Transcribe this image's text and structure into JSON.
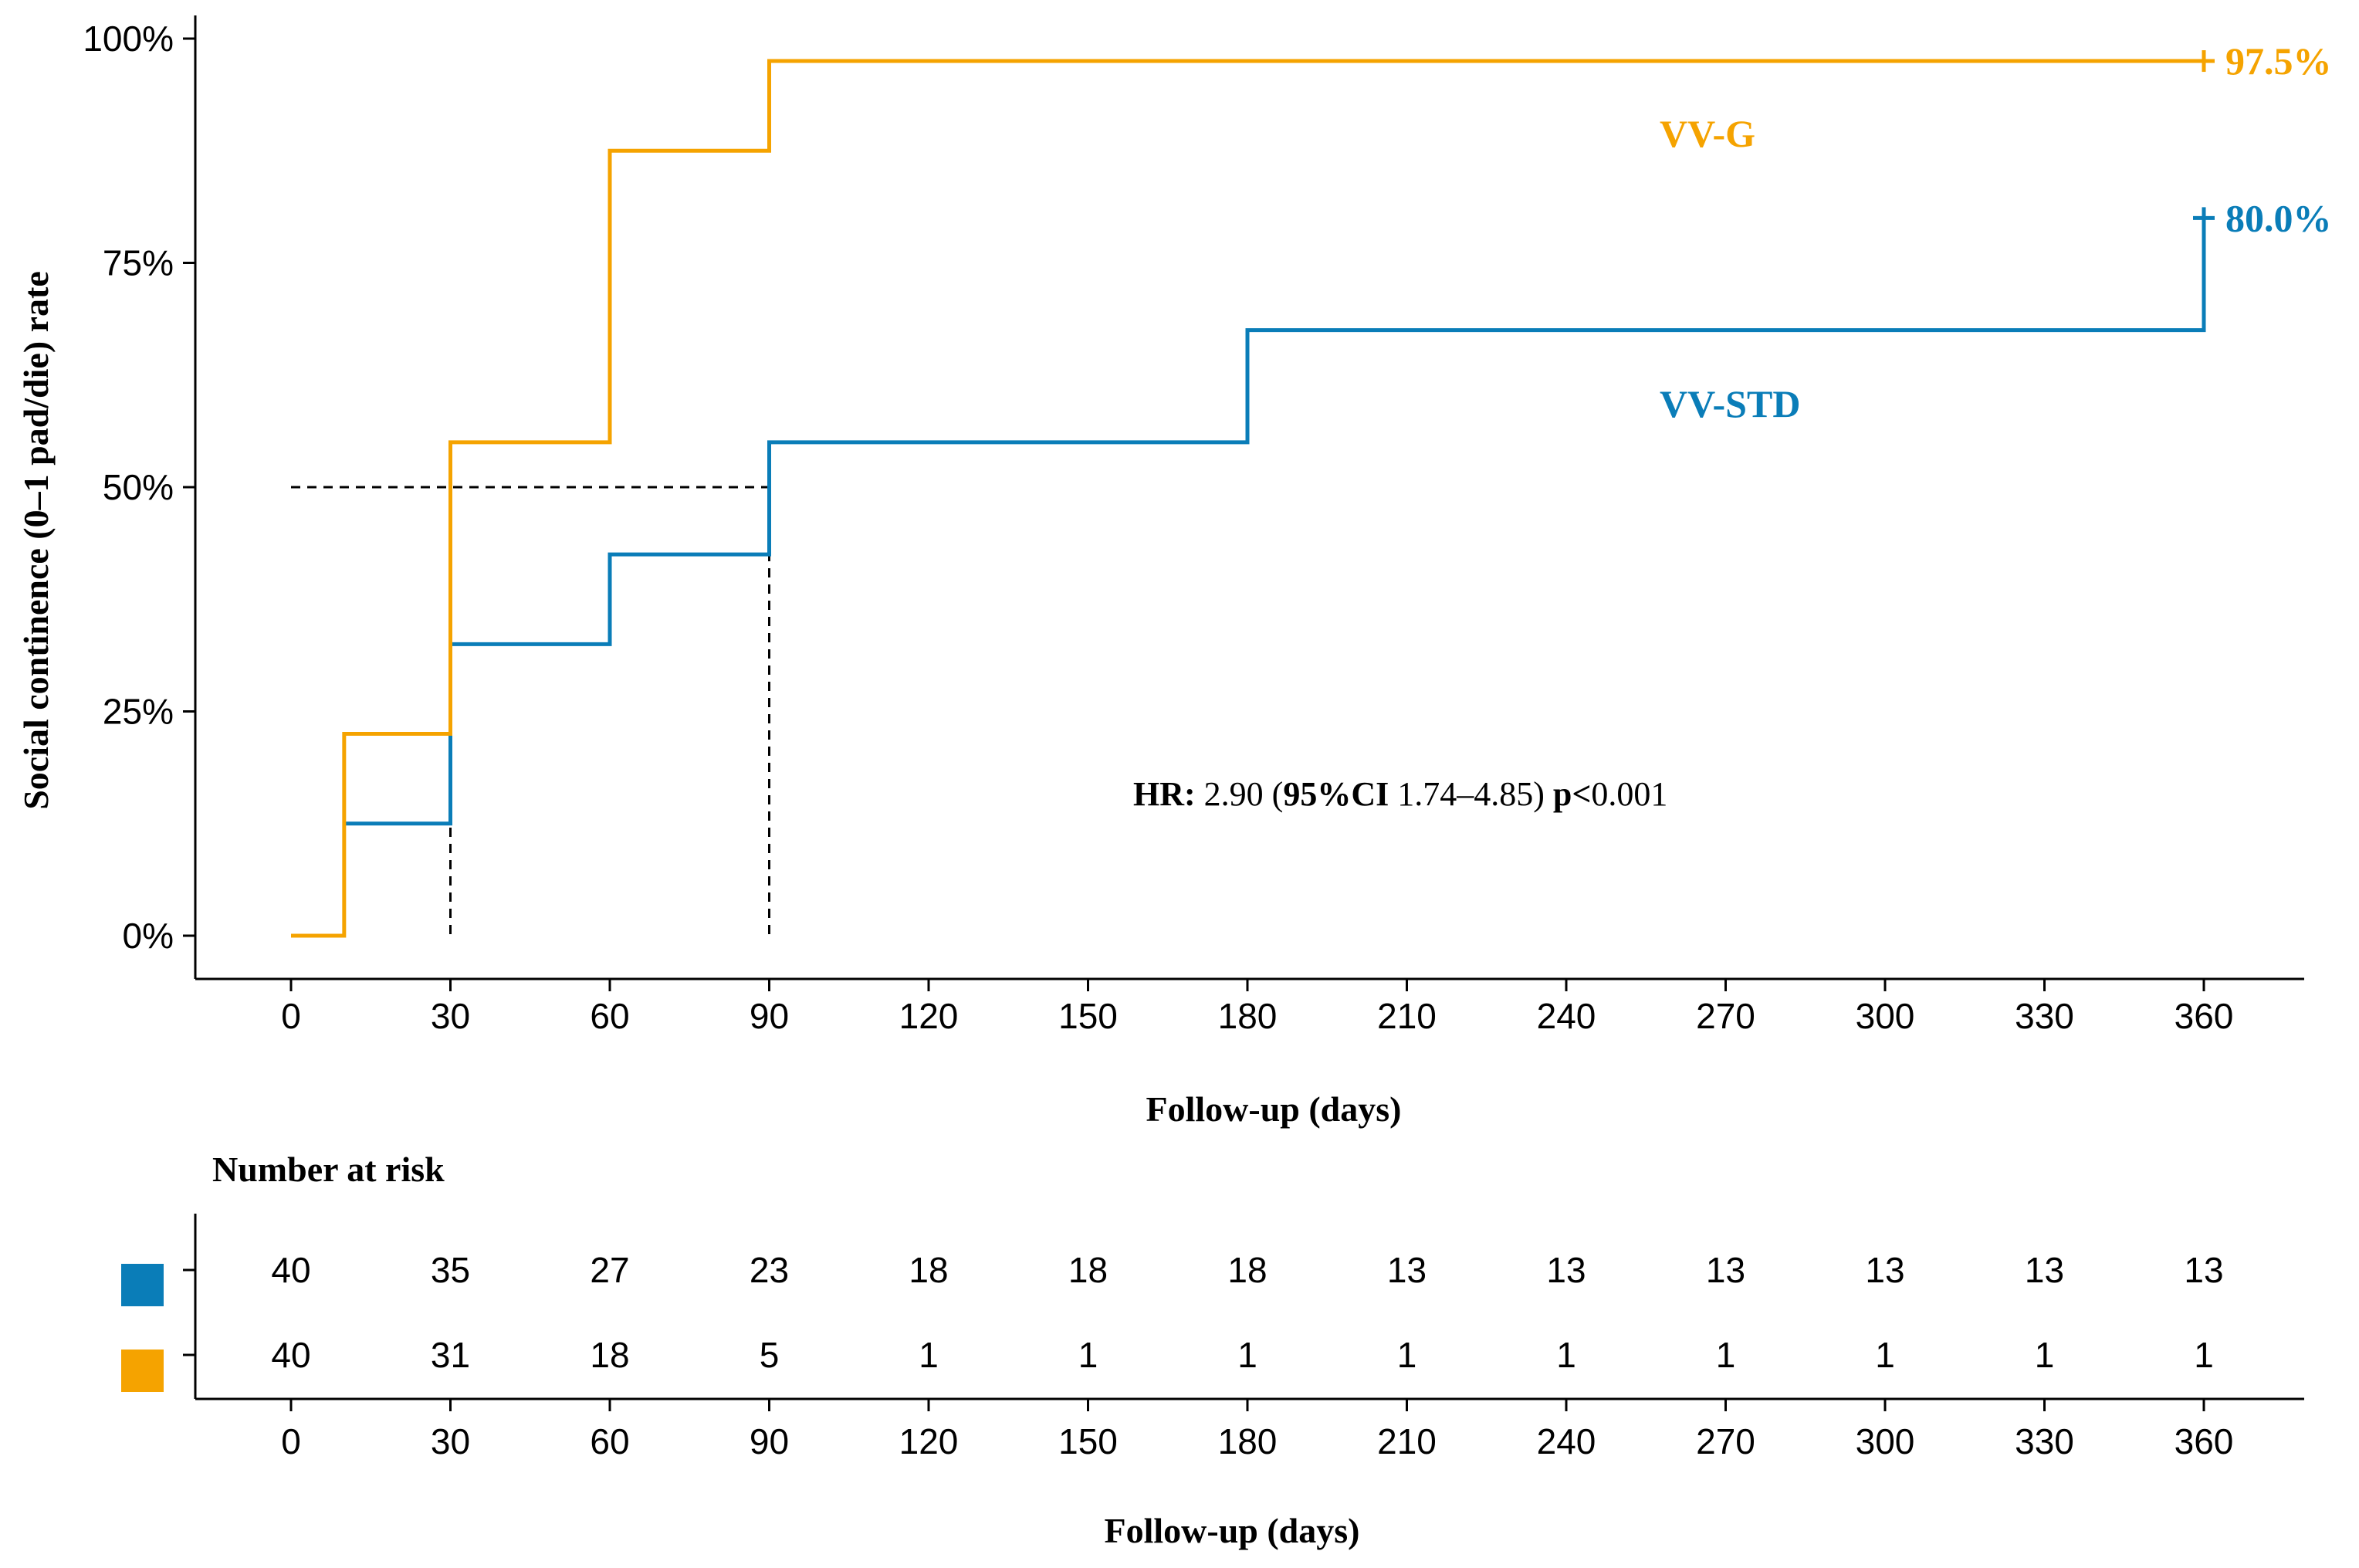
{
  "chart_data": {
    "type": "line",
    "step": true,
    "xlabel": "Follow-up (days)",
    "ylabel": "Social continence (0–1 pad/die) rate",
    "x_ticks": [
      0,
      30,
      60,
      90,
      120,
      150,
      180,
      210,
      240,
      270,
      300,
      330,
      360
    ],
    "y_ticks": [
      "0%",
      "25%",
      "50%",
      "75%",
      "100%"
    ],
    "xlim": [
      -18,
      378
    ],
    "ylim": [
      -0.05,
      1.03
    ],
    "grid": false,
    "series": [
      {
        "name": "VV-G",
        "color": "#F5A300",
        "steps": [
          [
            0,
            0.0
          ],
          [
            10,
            0.225
          ],
          [
            30,
            0.55
          ],
          [
            60,
            0.875
          ],
          [
            90,
            0.975
          ],
          [
            360,
            0.975
          ]
        ],
        "end_label": "97.5%",
        "risk": [
          "40",
          "31",
          "18",
          "5",
          "1",
          "1",
          "1",
          "1",
          "1",
          "1",
          "1",
          "1",
          "1"
        ]
      },
      {
        "name": "VV-STD",
        "color": "#0A7DB8",
        "steps": [
          [
            10,
            0.125
          ],
          [
            30,
            0.325
          ],
          [
            60,
            0.425
          ],
          [
            90,
            0.55
          ],
          [
            180,
            0.675
          ],
          [
            360,
            0.8
          ]
        ],
        "end_label": "80.0%",
        "risk": [
          "40",
          "35",
          "27",
          "23",
          "18",
          "18",
          "18",
          "13",
          "13",
          "13",
          "13",
          "13",
          "13"
        ]
      }
    ],
    "median_lines": [
      {
        "x": 30,
        "y": 0.5
      },
      {
        "x": 90,
        "y": 0.5
      }
    ],
    "annotation": {
      "hr_label": "HR:",
      "hr_value": " 2.90 (",
      "ci_label": "95%CI",
      "ci_value": " 1.74–4.85) ",
      "p_label": "p<",
      "p_value": "0.001"
    },
    "risk_table": {
      "title": "Number at risk",
      "xlabel": "Follow-up (days)"
    }
  }
}
